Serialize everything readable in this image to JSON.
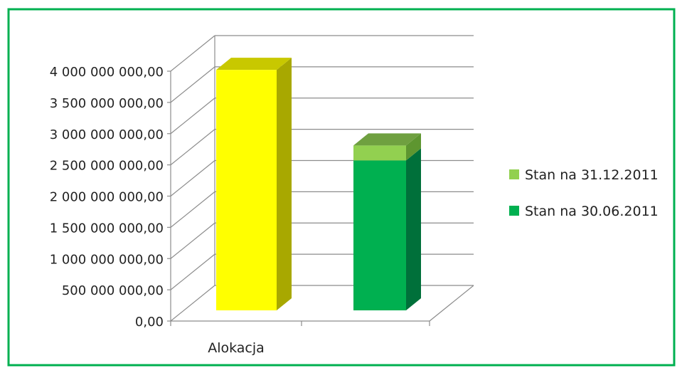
{
  "chart_data": {
    "type": "bar",
    "categories": [
      "Alokacja",
      ""
    ],
    "stacked_3d": true,
    "y_range": [
      0,
      4000000000
    ],
    "y_ticks": [
      {
        "value": 0,
        "label": "0,00"
      },
      {
        "value": 500000000,
        "label": "500 000 000,00"
      },
      {
        "value": 1000000000,
        "label": "1 000 000 000,00"
      },
      {
        "value": 1500000000,
        "label": "1 500 000 000,00"
      },
      {
        "value": 2000000000,
        "label": "2 000 000 000,00"
      },
      {
        "value": 2500000000,
        "label": "2 500 000 000,00"
      },
      {
        "value": 3000000000,
        "label": "3 000 000 000,00"
      },
      {
        "value": 3500000000,
        "label": "3 500 000 000,00"
      },
      {
        "value": 4000000000,
        "label": "4 000 000 000,00"
      }
    ],
    "grid": true,
    "legend_position": "right",
    "bars": [
      {
        "category": "Alokacja",
        "segments": [
          {
            "value": 3850000000,
            "color": "#ffff00",
            "side_color": "#a8a800",
            "top_color": "#c8c800"
          }
        ]
      },
      {
        "category": "",
        "segments": [
          {
            "series": "Stan na 30.06.2011",
            "value": 2400000000,
            "color": "#00b050",
            "side_color": "#00703a",
            "top_color": "#00923f"
          },
          {
            "series": "Stan na 31.12.2011",
            "value": 240000000,
            "color": "#92d050",
            "side_color": "#5e9630",
            "top_color": "#6fa040"
          }
        ]
      }
    ],
    "legend": [
      {
        "label": "Stan na 31.12.2011",
        "color": "#92d050"
      },
      {
        "label": "Stan na 30.06.2011",
        "color": "#00b050"
      }
    ],
    "frame_color": "#00b050"
  }
}
